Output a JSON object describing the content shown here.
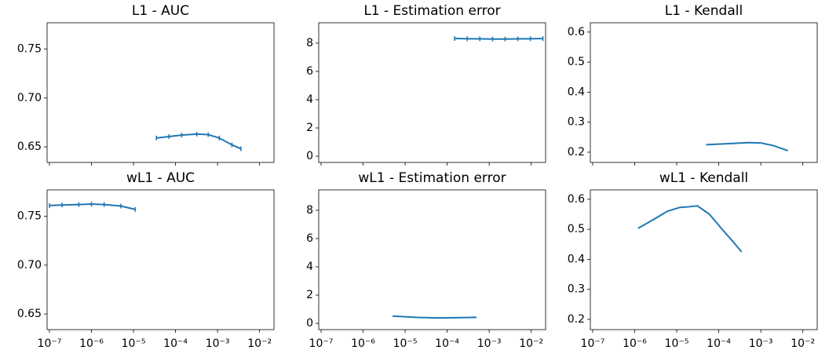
{
  "chart_data": [
    {
      "type": "line",
      "title": "L1 - AUC",
      "xscale": "log",
      "color": "#1f77b4",
      "markers": true,
      "x": [
        3.5e-05,
        7e-05,
        0.00014,
        0.00032,
        0.0006,
        0.0011,
        0.0022,
        0.0036
      ],
      "values": [
        0.659,
        0.6605,
        0.662,
        0.663,
        0.6625,
        0.659,
        0.652,
        0.648
      ],
      "xlim": [
        8.8e-08,
        0.022
      ],
      "ylim": [
        0.634,
        0.777
      ],
      "xticks": [
        1e-07,
        1e-06,
        1e-05,
        0.0001,
        0.001,
        0.01
      ],
      "yticks": [
        0.65,
        {
          "value": 0.7,
          "label": "0.70"
        },
        0.75
      ]
    },
    {
      "type": "line",
      "title": "L1 - Estimation error",
      "xscale": "log",
      "color": "#1f77b4",
      "markers": true,
      "x": [
        0.00015,
        0.0003,
        0.0006,
        0.0012,
        0.0024,
        0.0048,
        0.0096,
        0.019
      ],
      "values": [
        8.33,
        8.31,
        8.3,
        8.29,
        8.29,
        8.3,
        8.31,
        8.32
      ],
      "xlim": [
        8.8e-08,
        0.022
      ],
      "ylim": [
        -0.44,
        9.44
      ],
      "xticks": [
        1e-07,
        1e-06,
        1e-05,
        0.0001,
        0.001,
        0.01
      ],
      "yticks": [
        0,
        2,
        4,
        6,
        8
      ]
    },
    {
      "type": "line",
      "title": "L1 - Kendall",
      "xscale": "log",
      "color": "#1f77b4",
      "markers": false,
      "x": [
        5e-05,
        0.0001,
        0.0002,
        0.0005,
        0.001,
        0.002,
        0.0044
      ],
      "values": [
        0.225,
        0.227,
        0.229,
        0.232,
        0.231,
        0.222,
        0.205
      ],
      "xlim": [
        8.8e-08,
        0.022
      ],
      "ylim": [
        0.166,
        0.631
      ],
      "xticks": [
        1e-07,
        1e-06,
        1e-05,
        0.0001,
        0.001,
        0.01
      ],
      "yticks": [
        0.2,
        0.3,
        0.4,
        0.5,
        0.6
      ]
    },
    {
      "type": "line",
      "title": "wL1 - AUC",
      "xscale": "log",
      "color": "#1f77b4",
      "markers": true,
      "x": [
        1e-07,
        2e-07,
        5e-07,
        1e-06,
        2e-06,
        5e-06,
        1.1e-05
      ],
      "values": [
        0.761,
        0.7615,
        0.762,
        0.7625,
        0.762,
        0.7605,
        0.757
      ],
      "xlim": [
        8.8e-08,
        0.022
      ],
      "ylim": [
        0.634,
        0.777
      ],
      "xticks": [
        {
          "value": 1e-07,
          "label": "10⁻⁷"
        },
        {
          "value": 1e-06,
          "label": "10⁻⁶"
        },
        {
          "value": 1e-05,
          "label": "10⁻⁵"
        },
        {
          "value": 0.0001,
          "label": "10⁻⁴"
        },
        {
          "value": 0.001,
          "label": "10⁻³"
        },
        {
          "value": 0.01,
          "label": "10⁻²"
        }
      ],
      "yticks": [
        0.65,
        {
          "value": 0.7,
          "label": "0.70"
        },
        0.75
      ]
    },
    {
      "type": "line",
      "title": "wL1 - Estimation error",
      "xscale": "log",
      "color": "#1f77b4",
      "markers": false,
      "x": [
        5e-06,
        1e-05,
        2e-05,
        5e-05,
        0.0001,
        0.0002,
        0.0005
      ],
      "values": [
        0.52,
        0.47,
        0.42,
        0.39,
        0.39,
        0.41,
        0.43
      ],
      "xlim": [
        8.8e-08,
        0.022
      ],
      "ylim": [
        -0.44,
        9.44
      ],
      "xticks": [
        {
          "value": 1e-07,
          "label": "10⁻⁷"
        },
        {
          "value": 1e-06,
          "label": "10⁻⁶"
        },
        {
          "value": 1e-05,
          "label": "10⁻⁵"
        },
        {
          "value": 0.0001,
          "label": "10⁻⁴"
        },
        {
          "value": 0.001,
          "label": "10⁻³"
        },
        {
          "value": 0.01,
          "label": "10⁻²"
        }
      ],
      "yticks": [
        0,
        2,
        4,
        6,
        8
      ]
    },
    {
      "type": "line",
      "title": "wL1 - Kendall",
      "xscale": "log",
      "color": "#1f77b4",
      "markers": false,
      "x": [
        1.2e-06,
        3e-06,
        6e-06,
        1.2e-05,
        2e-05,
        3.1e-05,
        6e-05,
        0.00012,
        0.0002,
        0.00035
      ],
      "values": [
        0.503,
        0.535,
        0.56,
        0.573,
        0.575,
        0.578,
        0.55,
        0.5,
        0.465,
        0.425
      ],
      "xlim": [
        8.8e-08,
        0.022
      ],
      "ylim": [
        0.166,
        0.631
      ],
      "xticks": [
        {
          "value": 1e-07,
          "label": "10⁻⁷"
        },
        {
          "value": 1e-06,
          "label": "10⁻⁶"
        },
        {
          "value": 1e-05,
          "label": "10⁻⁵"
        },
        {
          "value": 0.0001,
          "label": "10⁻⁴"
        },
        {
          "value": 0.001,
          "label": "10⁻³"
        },
        {
          "value": 0.01,
          "label": "10⁻²"
        }
      ],
      "yticks": [
        0.2,
        0.3,
        0.4,
        0.5,
        0.6
      ]
    }
  ]
}
